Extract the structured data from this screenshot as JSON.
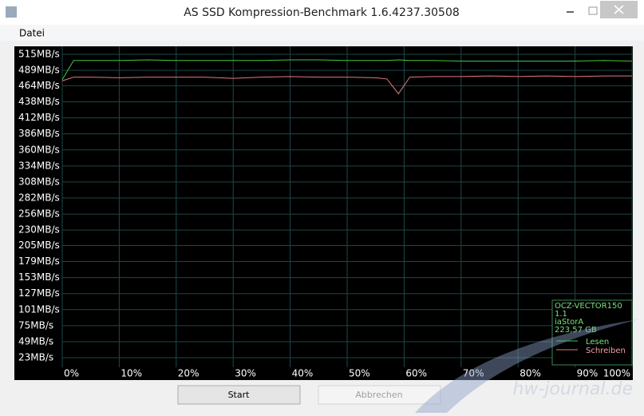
{
  "window": {
    "title": "AS SSD Kompression-Benchmark 1.6.4237.30508"
  },
  "menu": {
    "items": [
      "Datei"
    ]
  },
  "chart_data": {
    "type": "line",
    "x": [
      0,
      2,
      5,
      10,
      15,
      20,
      25,
      30,
      35,
      40,
      45,
      50,
      55,
      57,
      59,
      61,
      65,
      70,
      75,
      80,
      85,
      90,
      95,
      100
    ],
    "series": [
      {
        "name": "Lesen",
        "color": "#3ec93e",
        "values": [
          474,
          505,
          505,
          505,
          506,
          505,
          505,
          505,
          505,
          506,
          506,
          505,
          505,
          505,
          506,
          505,
          505,
          504,
          504,
          504,
          504,
          504,
          505,
          504
        ]
      },
      {
        "name": "Schreiben",
        "color": "#e07a7a",
        "values": [
          472,
          478,
          478,
          477,
          478,
          478,
          478,
          476,
          478,
          479,
          478,
          478,
          477,
          475,
          451,
          478,
          479,
          479,
          480,
          479,
          480,
          479,
          480,
          480
        ]
      }
    ],
    "xlim": [
      0,
      100
    ],
    "xticks": [
      {
        "value": 0,
        "label": "0%"
      },
      {
        "value": 10,
        "label": "10%"
      },
      {
        "value": 20,
        "label": "20%"
      },
      {
        "value": 30,
        "label": "30%"
      },
      {
        "value": 40,
        "label": "40%"
      },
      {
        "value": 50,
        "label": "50%"
      },
      {
        "value": 60,
        "label": "60%"
      },
      {
        "value": 70,
        "label": "70%"
      },
      {
        "value": 80,
        "label": "80%"
      },
      {
        "value": 90,
        "label": "90%"
      },
      {
        "value": 100,
        "label": "100%"
      }
    ],
    "ylim": [
      7.5,
      528
    ],
    "yticks": [
      {
        "value": 23,
        "label": "23MB/s"
      },
      {
        "value": 49,
        "label": "49MB/s"
      },
      {
        "value": 75,
        "label": "75MB/s"
      },
      {
        "value": 101,
        "label": "101MB/s"
      },
      {
        "value": 127,
        "label": "127MB/s"
      },
      {
        "value": 153,
        "label": "153MB/s"
      },
      {
        "value": 179,
        "label": "179MB/s"
      },
      {
        "value": 205,
        "label": "205MB/s"
      },
      {
        "value": 230,
        "label": "230MB/s"
      },
      {
        "value": 256,
        "label": "256MB/s"
      },
      {
        "value": 282,
        "label": "282MB/s"
      },
      {
        "value": 308,
        "label": "308MB/s"
      },
      {
        "value": 334,
        "label": "334MB/s"
      },
      {
        "value": 360,
        "label": "360MB/s"
      },
      {
        "value": 386,
        "label": "386MB/s"
      },
      {
        "value": 412,
        "label": "412MB/s"
      },
      {
        "value": 438,
        "label": "438MB/s"
      },
      {
        "value": 464,
        "label": "464MB/s"
      },
      {
        "value": 489,
        "label": "489MB/s"
      },
      {
        "value": 515,
        "label": "515MB/s"
      }
    ],
    "grid": true,
    "info_lines": [
      "OCZ-VECTOR150",
      "1.1",
      "iaStorA",
      "223,57 GB"
    ]
  },
  "buttons": [
    "Start",
    "Abbrechen"
  ],
  "watermark": "hw-journal.de"
}
